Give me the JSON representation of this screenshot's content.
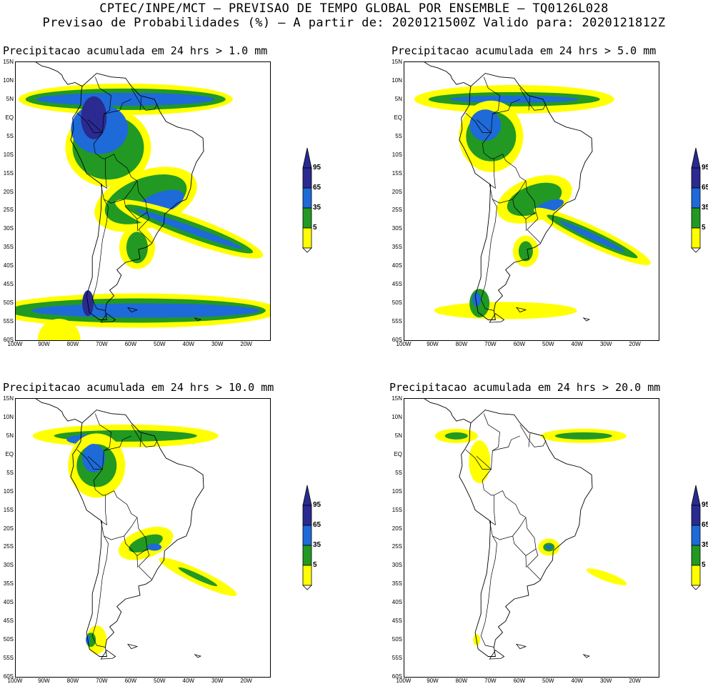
{
  "header": {
    "line1": "CPTEC/INPE/MCT – PREVISAO DE TEMPO GLOBAL POR ENSEMBLE – TQ0126L028",
    "line2": "Previsao de Probabilidades (%) –  A partir de: 2020121500Z  Valido para: 2020121812Z"
  },
  "colors": {
    "p5_35": "#ffff00",
    "p35_65": "#229922",
    "p65_95": "#1e6ad8",
    "p95": "#2a2a90",
    "coast": "#000000"
  },
  "axes": {
    "lat_labels": [
      "15N",
      "10N",
      "5N",
      "EQ",
      "5S",
      "10S",
      "15S",
      "20S",
      "25S",
      "30S",
      "35S",
      "40S",
      "45S",
      "50S",
      "55S",
      "60S"
    ],
    "lon_labels": [
      "100W",
      "90W",
      "80W",
      "70W",
      "60W",
      "50W",
      "40W",
      "30W",
      "20W"
    ],
    "lat_range": [
      -60,
      15
    ],
    "lon_range": [
      -100,
      -12
    ]
  },
  "colorbar": {
    "levels": [
      "95",
      "65",
      "35",
      "5"
    ]
  },
  "panels": [
    {
      "id": "p1",
      "title": "Precipitacao acumulada em 24 hrs > 1.0 mm"
    },
    {
      "id": "p2",
      "title": "Precipitacao acumulada em 24 hrs > 5.0 mm"
    },
    {
      "id": "p3",
      "title": "Precipitacao acumulada em 24 hrs > 10.0 mm"
    },
    {
      "id": "p4",
      "title": "Precipitacao acumulada em 24 hrs > 20.0 mm"
    }
  ]
}
